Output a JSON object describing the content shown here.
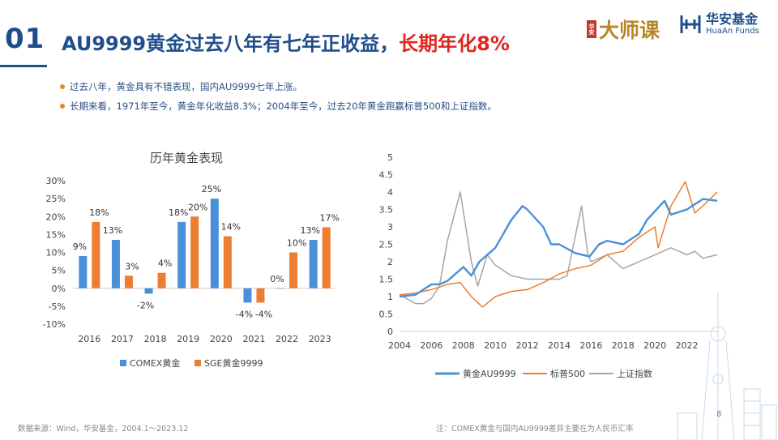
{
  "slide": {
    "number": "01",
    "title_main": "AU9999黄金过去八年有七年正收益，",
    "title_highlight": "长期年化8%",
    "page_number": "8"
  },
  "brands": {
    "dashi_seal": "华安",
    "dashi_text": "大师课",
    "huaan_cn": "华安基金",
    "huaan_en": "HuaAn Funds"
  },
  "bullets": [
    "过去八年，黄金具有不错表现，国内AU9999七年上涨。",
    "长期来看，1971年至今，黄金年化收益8.3%；2004年至今，过去20年黄金跑赢标普500和上证指数。"
  ],
  "footer": {
    "source": "数据来源：Wind，华安基金，2004.1～2023.12",
    "note": "注：COMEX黄金与国内AU9999差异主要在为人民币汇率"
  },
  "colors": {
    "blue": "#4a90d9",
    "orange": "#ed7d31",
    "gray": "#a5a5a5",
    "navy": "#1f4e8c",
    "red": "#e0261e"
  },
  "chart_data": [
    {
      "type": "bar",
      "title": "历年黄金表现",
      "categories": [
        "2016",
        "2017",
        "2018",
        "2019",
        "2020",
        "2021",
        "2022",
        "2023"
      ],
      "yticks": [
        "30%",
        "25%",
        "20%",
        "15%",
        "10%",
        "5%",
        "0%",
        "-5%",
        "-10%"
      ],
      "ylim": [
        -10,
        30
      ],
      "grid": false,
      "legend": "bottom",
      "series": [
        {
          "name": "COMEX黄金",
          "color": "#4a90d9",
          "values": [
            9,
            13.5,
            -1.5,
            18.5,
            25,
            -4,
            0,
            13.5
          ],
          "labels": [
            "9%",
            "13%",
            "-2%",
            "18%",
            "25%",
            "-4%",
            "0%",
            "13%"
          ]
        },
        {
          "name": "SGE黄金9999",
          "color": "#ed7d31",
          "values": [
            18.5,
            3.5,
            4.3,
            20,
            14.5,
            -4,
            10,
            17
          ],
          "labels": [
            "18%",
            "3%",
            "4%",
            "20%",
            "14%",
            "-4%",
            "10%",
            "17%"
          ]
        }
      ]
    },
    {
      "type": "line",
      "xticks": [
        "2004",
        "2006",
        "2008",
        "2010",
        "2012",
        "2014",
        "2016",
        "2018",
        "2020",
        "2022"
      ],
      "yticks": [
        "5",
        "4.5",
        "4",
        "3.5",
        "3",
        "2.5",
        "2",
        "1.5",
        "1",
        "0.5",
        "0"
      ],
      "xlim": [
        2004,
        2023.9
      ],
      "ylim": [
        0,
        5
      ],
      "grid": false,
      "legend": "bottom",
      "series": [
        {
          "name": "黄金AU9999",
          "color": "#4a90d9",
          "x": [
            2004,
            2005,
            2006,
            2006.5,
            2007,
            2008,
            2008.5,
            2009,
            2010,
            2011,
            2011.7,
            2012,
            2013,
            2013.5,
            2014,
            2015,
            2015.9,
            2016.5,
            2017,
            2018,
            2019,
            2019.5,
            2020.6,
            2021,
            2022,
            2023,
            2023.9
          ],
          "y": [
            1.0,
            1.05,
            1.35,
            1.35,
            1.45,
            1.85,
            1.6,
            2.0,
            2.4,
            3.2,
            3.6,
            3.5,
            3.0,
            2.5,
            2.5,
            2.25,
            2.15,
            2.5,
            2.6,
            2.5,
            2.8,
            3.2,
            3.75,
            3.35,
            3.5,
            3.8,
            3.75
          ]
        },
        {
          "name": "标普500",
          "color": "#ed7d31",
          "x": [
            2004,
            2005,
            2006,
            2007,
            2007.8,
            2008.5,
            2009.2,
            2010,
            2011,
            2012,
            2013,
            2014,
            2015,
            2016,
            2017,
            2018,
            2019,
            2020,
            2020.2,
            2021,
            2021.9,
            2022.5,
            2023,
            2023.9
          ],
          "y": [
            1.05,
            1.1,
            1.2,
            1.35,
            1.4,
            1.0,
            0.7,
            1.0,
            1.15,
            1.2,
            1.4,
            1.65,
            1.8,
            1.9,
            2.2,
            2.3,
            2.7,
            3.0,
            2.4,
            3.6,
            4.3,
            3.4,
            3.6,
            4.0
          ]
        },
        {
          "name": "上证指数",
          "color": "#a5a5a5",
          "x": [
            2004,
            2005,
            2005.5,
            2006,
            2006.5,
            2007,
            2007.8,
            2008.5,
            2008.9,
            2009.5,
            2010,
            2011,
            2012,
            2013,
            2014,
            2014.5,
            2015.4,
            2015.8,
            2016,
            2017,
            2018,
            2019,
            2020,
            2021,
            2022,
            2022.5,
            2023,
            2023.9
          ],
          "y": [
            1.05,
            0.8,
            0.8,
            0.95,
            1.3,
            2.6,
            4.0,
            2.0,
            1.3,
            2.2,
            1.9,
            1.6,
            1.5,
            1.5,
            1.5,
            1.6,
            3.6,
            2.2,
            2.0,
            2.2,
            1.8,
            2.0,
            2.2,
            2.4,
            2.2,
            2.3,
            2.1,
            2.2
          ]
        }
      ]
    }
  ]
}
